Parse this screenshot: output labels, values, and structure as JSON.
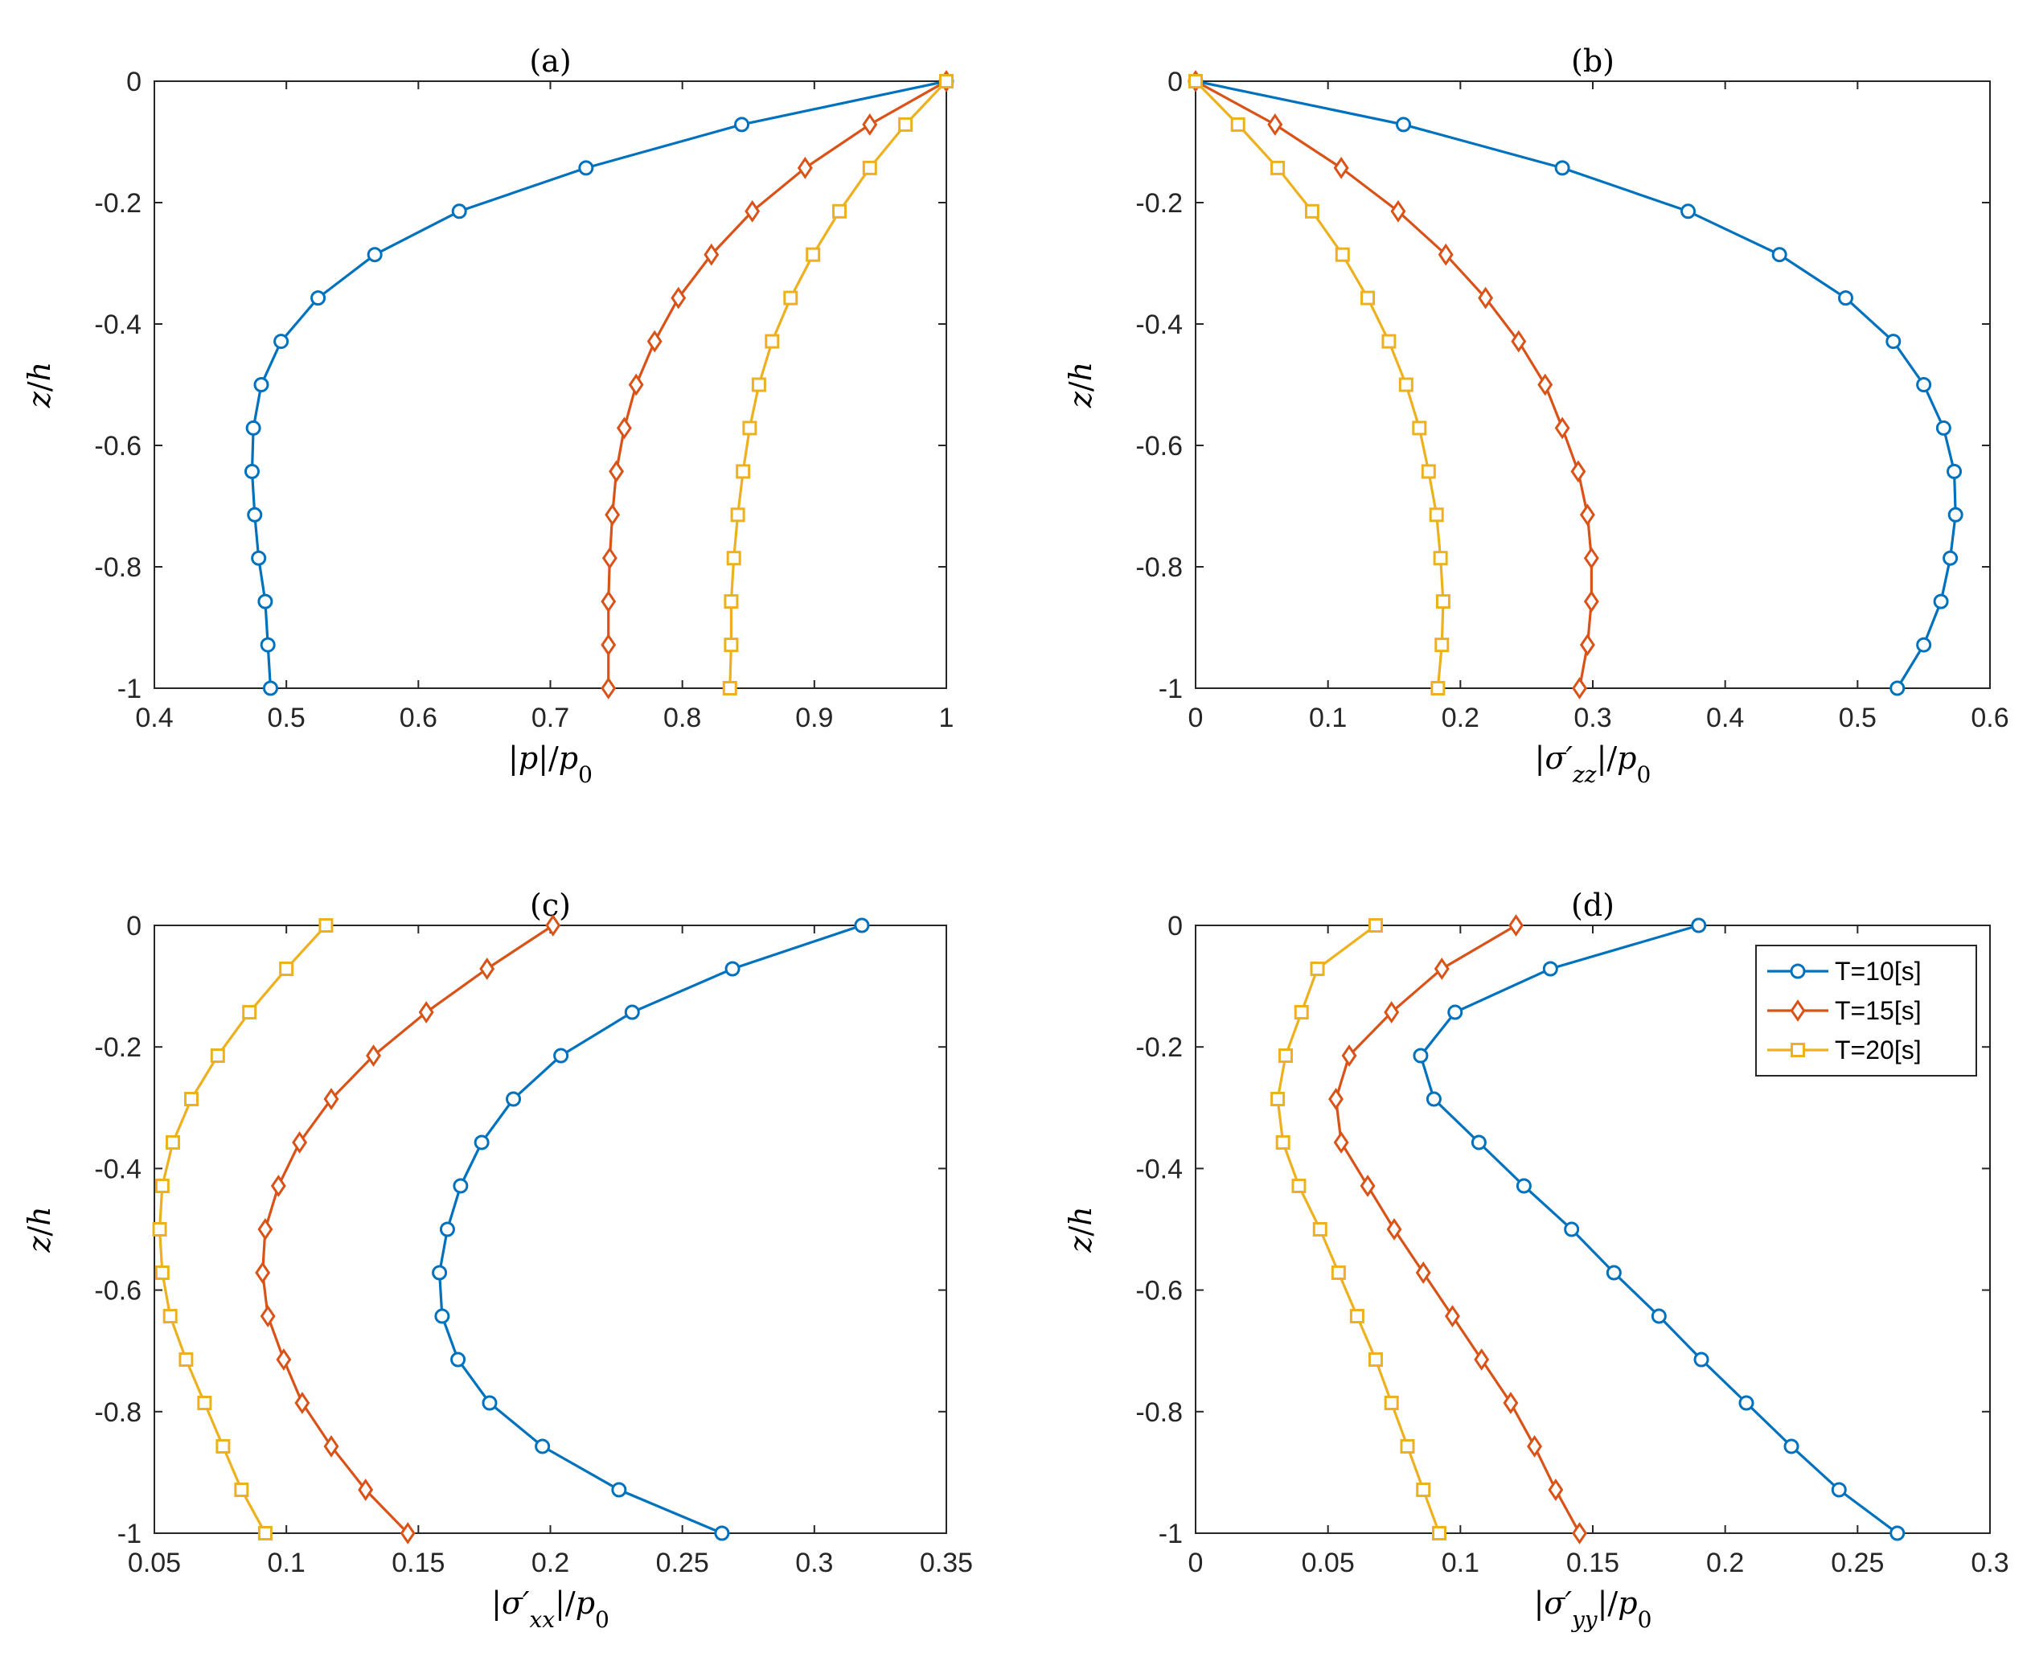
{
  "series_style": [
    {
      "name": "T=10[s]",
      "color": "#0072BD",
      "marker": "circle"
    },
    {
      "name": "T=15[s]",
      "color": "#D95319",
      "marker": "diamond"
    },
    {
      "name": "T=20[s]",
      "color": "#EDB120",
      "marker": "square"
    }
  ],
  "legend": {
    "placement": "top-right of panel (d)",
    "entries": [
      "T=10[s]",
      "T=15[s]",
      "T=20[s]"
    ]
  },
  "chart_data": [
    {
      "type": "line",
      "title": "(a)",
      "xlabel": "|p|/p0",
      "ylabel": "z/h",
      "xlim": [
        0.4,
        1
      ],
      "ylim": [
        -1,
        0
      ],
      "xticks": [
        0.4,
        0.5,
        0.6,
        0.7,
        0.8,
        0.9,
        1
      ],
      "xtick_labels": [
        "0.4",
        "0.5",
        "0.6",
        "0.7",
        "0.8",
        "0.9",
        "1"
      ],
      "yticks": [
        0,
        -0.2,
        -0.4,
        -0.6,
        -0.8,
        -1
      ],
      "ytick_labels": [
        "0",
        "-0.2",
        "-0.4",
        "-0.6",
        "-0.8",
        "-1"
      ],
      "z": [
        0,
        -0.0714,
        -0.1429,
        -0.2143,
        -0.2857,
        -0.3571,
        -0.4286,
        -0.5,
        -0.5714,
        -0.6429,
        -0.7143,
        -0.7857,
        -0.8571,
        -0.9286,
        -1
      ],
      "series": [
        {
          "name": "T=10[s]",
          "x": [
            1.0,
            0.845,
            0.727,
            0.631,
            0.567,
            0.524,
            0.496,
            0.481,
            0.475,
            0.474,
            0.476,
            0.479,
            0.484,
            0.486,
            0.488
          ]
        },
        {
          "name": "T=15[s]",
          "x": [
            1.0,
            0.942,
            0.893,
            0.853,
            0.822,
            0.797,
            0.779,
            0.765,
            0.756,
            0.75,
            0.747,
            0.745,
            0.744,
            0.744,
            0.744
          ]
        },
        {
          "name": "T=20[s]",
          "x": [
            1.0,
            0.969,
            0.942,
            0.919,
            0.899,
            0.882,
            0.868,
            0.858,
            0.851,
            0.846,
            0.842,
            0.839,
            0.837,
            0.837,
            0.836
          ]
        }
      ]
    },
    {
      "type": "line",
      "title": "(b)",
      "xlabel": "|σ'zz|/p0",
      "ylabel": "z/h",
      "xlim": [
        0,
        0.6
      ],
      "ylim": [
        -1,
        0
      ],
      "xticks": [
        0,
        0.1,
        0.2,
        0.3,
        0.4,
        0.5,
        0.6
      ],
      "xtick_labels": [
        "0",
        "0.1",
        "0.2",
        "0.3",
        "0.4",
        "0.5",
        "0.6"
      ],
      "yticks": [
        0,
        -0.2,
        -0.4,
        -0.6,
        -0.8,
        -1
      ],
      "ytick_labels": [
        "0",
        "-0.2",
        "-0.4",
        "-0.6",
        "-0.8",
        "-1"
      ],
      "z": [
        0,
        -0.0714,
        -0.1429,
        -0.2143,
        -0.2857,
        -0.3571,
        -0.4286,
        -0.5,
        -0.5714,
        -0.6429,
        -0.7143,
        -0.7857,
        -0.8571,
        -0.9286,
        -1
      ],
      "series": [
        {
          "name": "T=10[s]",
          "x": [
            0.0,
            0.157,
            0.277,
            0.372,
            0.441,
            0.491,
            0.527,
            0.55,
            0.565,
            0.573,
            0.574,
            0.57,
            0.563,
            0.55,
            0.53
          ]
        },
        {
          "name": "T=15[s]",
          "x": [
            0.0,
            0.06,
            0.11,
            0.153,
            0.189,
            0.219,
            0.244,
            0.264,
            0.277,
            0.289,
            0.296,
            0.299,
            0.299,
            0.296,
            0.29
          ]
        },
        {
          "name": "T=20[s]",
          "x": [
            0.0,
            0.032,
            0.062,
            0.088,
            0.111,
            0.13,
            0.146,
            0.159,
            0.169,
            0.176,
            0.182,
            0.185,
            0.187,
            0.186,
            0.183
          ]
        }
      ]
    },
    {
      "type": "line",
      "title": "(c)",
      "xlabel": "|σ'xx|/p0",
      "ylabel": "z/h",
      "xlim": [
        0.05,
        0.35
      ],
      "ylim": [
        -1,
        0
      ],
      "xticks": [
        0.05,
        0.1,
        0.15,
        0.2,
        0.25,
        0.3,
        0.35
      ],
      "xtick_labels": [
        "0.05",
        "0.1",
        "0.15",
        "0.2",
        "0.25",
        "0.3",
        "0.35"
      ],
      "yticks": [
        0,
        -0.2,
        -0.4,
        -0.6,
        -0.8,
        -1
      ],
      "ytick_labels": [
        "0",
        "-0.2",
        "-0.4",
        "-0.6",
        "-0.8",
        "-1"
      ],
      "z": [
        0,
        -0.0714,
        -0.1429,
        -0.2143,
        -0.2857,
        -0.3571,
        -0.4286,
        -0.5,
        -0.5714,
        -0.6429,
        -0.7143,
        -0.7857,
        -0.8571,
        -0.9286,
        -1
      ],
      "series": [
        {
          "name": "T=10[s]",
          "x": [
            0.318,
            0.269,
            0.231,
            0.204,
            0.186,
            0.174,
            0.166,
            0.161,
            0.158,
            0.159,
            0.165,
            0.177,
            0.197,
            0.226,
            0.265
          ]
        },
        {
          "name": "T=15[s]",
          "x": [
            0.201,
            0.176,
            0.153,
            0.133,
            0.117,
            0.105,
            0.097,
            0.092,
            0.091,
            0.093,
            0.099,
            0.106,
            0.117,
            0.13,
            0.146
          ]
        },
        {
          "name": "T=20[s]",
          "x": [
            0.115,
            0.1,
            0.086,
            0.074,
            0.064,
            0.057,
            0.053,
            0.052,
            0.053,
            0.056,
            0.062,
            0.069,
            0.076,
            0.083,
            0.092
          ]
        }
      ]
    },
    {
      "type": "line",
      "title": "(d)",
      "xlabel": "|σ'yy|/p0",
      "ylabel": "z/h",
      "xlim": [
        0,
        0.3
      ],
      "ylim": [
        -1,
        0
      ],
      "xticks": [
        0,
        0.05,
        0.1,
        0.15,
        0.2,
        0.25,
        0.3
      ],
      "xtick_labels": [
        "0",
        "0.05",
        "0.1",
        "0.15",
        "0.2",
        "0.25",
        "0.3"
      ],
      "yticks": [
        0,
        -0.2,
        -0.4,
        -0.6,
        -0.8,
        -1
      ],
      "ytick_labels": [
        "0",
        "-0.2",
        "-0.4",
        "-0.6",
        "-0.8",
        "-1"
      ],
      "z": [
        0,
        -0.0714,
        -0.1429,
        -0.2143,
        -0.2857,
        -0.3571,
        -0.4286,
        -0.5,
        -0.5714,
        -0.6429,
        -0.7143,
        -0.7857,
        -0.8571,
        -0.9286,
        -1
      ],
      "series": [
        {
          "name": "T=10[s]",
          "x": [
            0.19,
            0.134,
            0.098,
            0.085,
            0.09,
            0.107,
            0.124,
            0.142,
            0.158,
            0.175,
            0.191,
            0.208,
            0.225,
            0.243,
            0.265
          ]
        },
        {
          "name": "T=15[s]",
          "x": [
            0.121,
            0.093,
            0.074,
            0.058,
            0.053,
            0.055,
            0.065,
            0.075,
            0.086,
            0.097,
            0.108,
            0.119,
            0.128,
            0.136,
            0.145
          ]
        },
        {
          "name": "T=20[s]",
          "x": [
            0.068,
            0.046,
            0.04,
            0.034,
            0.031,
            0.033,
            0.039,
            0.047,
            0.054,
            0.061,
            0.068,
            0.074,
            0.08,
            0.086,
            0.092
          ]
        }
      ]
    }
  ]
}
